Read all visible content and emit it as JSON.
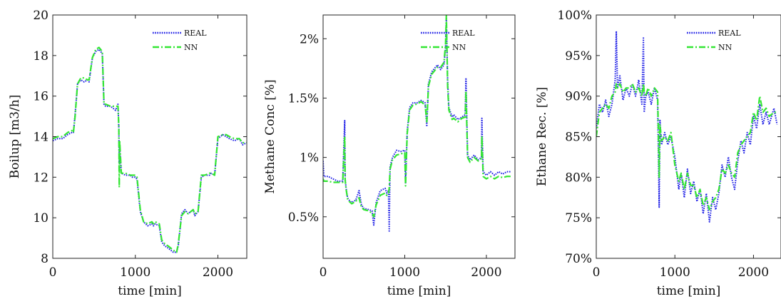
{
  "chart_data": [
    {
      "type": "line",
      "xlabel": "time [min]",
      "ylabel": "Boilup [m3/h]",
      "xlim": [
        0,
        2350
      ],
      "ylim": [
        8,
        20
      ],
      "xticks": [
        0,
        1000,
        2000
      ],
      "xtick_labels": [
        "0",
        "1000",
        "2000"
      ],
      "yticks": [
        8,
        10,
        12,
        14,
        16,
        18,
        20
      ],
      "ytick_labels": [
        "8",
        "10",
        "12",
        "14",
        "16",
        "18",
        "20"
      ],
      "legend_position": "top-right",
      "series": [
        {
          "name": "REAL",
          "color": "#1f1fe6",
          "style": "dotted",
          "x": [
            0,
            60,
            120,
            180,
            230,
            250,
            270,
            300,
            340,
            380,
            420,
            440,
            480,
            520,
            560,
            600,
            620,
            640,
            700,
            760,
            790,
            800,
            805,
            810,
            830,
            880,
            940,
            960,
            1000,
            1020,
            1060,
            1100,
            1150,
            1200,
            1220,
            1240,
            1290,
            1320,
            1360,
            1400,
            1460,
            1500,
            1520,
            1560,
            1600,
            1640,
            1700,
            1720,
            1760,
            1800,
            1840,
            1900,
            1920,
            1960,
            2000,
            2060,
            2100,
            2140,
            2200,
            2260,
            2300,
            2350
          ],
          "values": [
            13.8,
            13.9,
            13.9,
            14.1,
            14.2,
            14.2,
            15.1,
            16.6,
            16.8,
            16.7,
            16.8,
            16.7,
            17.9,
            18.2,
            18.3,
            18.1,
            15.6,
            15.5,
            15.5,
            15.3,
            15.6,
            14.4,
            12.7,
            13.5,
            12.2,
            12.1,
            12.1,
            12.0,
            12.0,
            11.9,
            10.3,
            9.8,
            9.6,
            9.7,
            9.6,
            9.7,
            9.6,
            8.8,
            8.6,
            8.5,
            8.3,
            8.3,
            8.6,
            10.2,
            10.4,
            10.2,
            10.4,
            10.1,
            10.3,
            12.0,
            12.1,
            12.1,
            12.2,
            12.1,
            13.9,
            14.1,
            14.0,
            13.9,
            13.8,
            13.9,
            13.6,
            13.7
          ]
        },
        {
          "name": "NN",
          "color": "#33e633",
          "style": "dashdot",
          "x": [
            0,
            60,
            120,
            180,
            230,
            250,
            270,
            300,
            340,
            380,
            420,
            440,
            480,
            520,
            560,
            600,
            620,
            640,
            700,
            760,
            790,
            800,
            805,
            810,
            830,
            880,
            940,
            960,
            1000,
            1020,
            1060,
            1100,
            1150,
            1200,
            1220,
            1240,
            1290,
            1320,
            1360,
            1400,
            1460,
            1500,
            1520,
            1560,
            1600,
            1640,
            1700,
            1720,
            1760,
            1800,
            1840,
            1900,
            1920,
            1960,
            2000,
            2060,
            2100,
            2140,
            2200,
            2260,
            2300,
            2350
          ],
          "values": [
            13.9,
            14.0,
            14.0,
            14.2,
            14.3,
            14.2,
            15.0,
            16.6,
            16.9,
            16.9,
            16.8,
            16.8,
            17.9,
            18.3,
            18.4,
            18.2,
            15.6,
            15.6,
            15.5,
            15.5,
            15.5,
            14.5,
            11.5,
            13.8,
            12.2,
            12.2,
            12.1,
            12.1,
            12.1,
            12.0,
            10.4,
            9.8,
            9.7,
            9.8,
            9.7,
            9.8,
            9.7,
            8.9,
            8.7,
            8.6,
            8.4,
            8.3,
            8.7,
            10.1,
            10.3,
            10.2,
            10.4,
            10.2,
            10.3,
            12.1,
            12.1,
            12.2,
            12.2,
            12.1,
            14.0,
            14.1,
            14.1,
            14.0,
            13.9,
            13.9,
            13.7,
            13.7
          ]
        }
      ]
    },
    {
      "type": "line",
      "xlabel": "time [min]",
      "ylabel": "Methane Conc [%]",
      "xlim": [
        0,
        2350
      ],
      "ylim": [
        0.15,
        2.2
      ],
      "xticks": [
        0,
        1000,
        2000
      ],
      "xtick_labels": [
        "0",
        "1000",
        "2000"
      ],
      "yticks": [
        0.5,
        1.0,
        1.5,
        2.0
      ],
      "ytick_labels": [
        "0.5%",
        "1%",
        "1.5%",
        "2%"
      ],
      "legend_position": "top-right",
      "series": [
        {
          "name": "REAL",
          "color": "#1f1fe6",
          "style": "dotted",
          "x": [
            0,
            10,
            60,
            120,
            180,
            240,
            265,
            270,
            280,
            300,
            320,
            350,
            400,
            440,
            470,
            500,
            560,
            600,
            620,
            650,
            700,
            760,
            780,
            800,
            810,
            820,
            850,
            900,
            950,
            1000,
            1010,
            1030,
            1060,
            1100,
            1150,
            1200,
            1250,
            1270,
            1290,
            1330,
            1400,
            1440,
            1480,
            1500,
            1510,
            1525,
            1540,
            1580,
            1600,
            1650,
            1700,
            1740,
            1750,
            1770,
            1800,
            1850,
            1900,
            1940,
            1945,
            1960,
            2000,
            2050,
            2100,
            2150,
            2200,
            2250,
            2300
          ],
          "values": [
            0.97,
            0.84,
            0.84,
            0.82,
            0.8,
            0.8,
            1.31,
            0.82,
            0.75,
            0.66,
            0.64,
            0.62,
            0.64,
            0.72,
            0.6,
            0.57,
            0.56,
            0.55,
            0.43,
            0.62,
            0.72,
            0.74,
            0.7,
            0.72,
            0.38,
            0.92,
            1.0,
            1.06,
            1.05,
            1.06,
            0.78,
            1.22,
            1.42,
            1.46,
            1.46,
            1.48,
            1.46,
            1.26,
            1.62,
            1.72,
            1.78,
            1.74,
            1.78,
            1.92,
            2.18,
            1.65,
            1.42,
            1.34,
            1.36,
            1.32,
            1.34,
            1.36,
            1.67,
            1.02,
            0.98,
            1.02,
            0.98,
            1.0,
            1.33,
            0.88,
            0.85,
            0.88,
            0.85,
            0.88,
            0.86,
            0.88,
            0.88
          ]
        },
        {
          "name": "NN",
          "color": "#33e633",
          "style": "dashdot",
          "x": [
            0,
            10,
            60,
            120,
            180,
            240,
            265,
            270,
            280,
            300,
            320,
            350,
            400,
            440,
            470,
            500,
            560,
            600,
            620,
            650,
            700,
            760,
            780,
            800,
            810,
            820,
            850,
            900,
            950,
            1000,
            1010,
            1030,
            1060,
            1100,
            1150,
            1200,
            1250,
            1270,
            1290,
            1330,
            1400,
            1440,
            1480,
            1500,
            1510,
            1525,
            1540,
            1580,
            1600,
            1650,
            1700,
            1740,
            1750,
            1770,
            1800,
            1850,
            1900,
            1940,
            1945,
            1960,
            2000,
            2050,
            2100,
            2150,
            2200,
            2250,
            2300
          ],
          "values": [
            0.82,
            0.8,
            0.8,
            0.79,
            0.79,
            0.79,
            1.18,
            0.81,
            0.74,
            0.65,
            0.63,
            0.61,
            0.63,
            0.66,
            0.58,
            0.56,
            0.55,
            0.53,
            0.5,
            0.6,
            0.68,
            0.7,
            0.68,
            0.7,
            0.74,
            0.9,
            0.98,
            1.02,
            1.03,
            1.04,
            0.76,
            1.2,
            1.4,
            1.44,
            1.45,
            1.47,
            1.44,
            1.3,
            1.6,
            1.7,
            1.76,
            1.76,
            1.8,
            1.95,
            2.2,
            1.6,
            1.4,
            1.32,
            1.33,
            1.3,
            1.33,
            1.34,
            1.56,
            1.0,
            0.96,
            1.0,
            0.97,
            0.99,
            1.18,
            0.84,
            0.82,
            0.84,
            0.82,
            0.84,
            0.83,
            0.84,
            0.84
          ]
        }
      ]
    },
    {
      "type": "line",
      "xlabel": "time [min]",
      "ylabel": "Ethane Rec. [%]",
      "xlim": [
        0,
        2350
      ],
      "ylim": [
        70,
        100
      ],
      "xticks": [
        0,
        1000,
        2000
      ],
      "xtick_labels": [
        "0",
        "1000",
        "2000"
      ],
      "yticks": [
        70,
        75,
        80,
        85,
        90,
        95,
        100
      ],
      "ytick_labels": [
        "70%",
        "75%",
        "80%",
        "85%",
        "90%",
        "95%",
        "100%"
      ],
      "legend_position": "top-right",
      "series": [
        {
          "name": "REAL",
          "color": "#1f1fe6",
          "style": "dotted",
          "x": [
            0,
            40,
            80,
            120,
            160,
            200,
            240,
            255,
            270,
            300,
            340,
            380,
            420,
            460,
            500,
            540,
            580,
            600,
            610,
            630,
            660,
            700,
            740,
            780,
            800,
            810,
            830,
            870,
            910,
            950,
            1000,
            1050,
            1080,
            1120,
            1160,
            1200,
            1240,
            1280,
            1320,
            1360,
            1400,
            1440,
            1480,
            1520,
            1560,
            1600,
            1640,
            1680,
            1720,
            1760,
            1800,
            1840,
            1880,
            1920,
            1960,
            2000,
            2040,
            2080,
            2120,
            2160,
            2200,
            2260,
            2300
          ],
          "values": [
            86.0,
            89.0,
            88.0,
            89.5,
            87.5,
            89.0,
            92.0,
            98.0,
            91.0,
            92.5,
            89.5,
            91.0,
            90.0,
            91.5,
            90.0,
            92.0,
            89.0,
            97.3,
            88.0,
            90.0,
            90.5,
            89.0,
            91.0,
            89.5,
            76.3,
            87.0,
            84.0,
            85.5,
            84.0,
            85.0,
            82.5,
            78.5,
            80.5,
            77.5,
            81.0,
            78.0,
            79.5,
            77.0,
            78.5,
            75.5,
            78.0,
            74.5,
            77.5,
            76.0,
            78.0,
            81.5,
            80.0,
            82.5,
            80.0,
            78.5,
            82.0,
            84.5,
            83.0,
            85.5,
            84.0,
            87.5,
            86.0,
            89.0,
            86.5,
            88.0,
            86.5,
            88.5,
            86.5
          ]
        },
        {
          "name": "NN",
          "color": "#33e633",
          "style": "dashdot",
          "x": [
            0,
            40,
            80,
            120,
            160,
            200,
            240,
            255,
            270,
            300,
            340,
            380,
            420,
            460,
            500,
            540,
            580,
            600,
            610,
            630,
            660,
            700,
            740,
            780,
            800,
            810,
            830,
            870,
            910,
            950,
            1000,
            1050,
            1080,
            1120,
            1160,
            1200,
            1240,
            1280,
            1320,
            1360,
            1400,
            1440,
            1480,
            1520,
            1560,
            1600,
            1640,
            1680,
            1720,
            1760,
            1800,
            1840,
            1880,
            1920,
            1960,
            2000,
            2040,
            2080,
            2120,
            2160,
            2200,
            2260,
            2300
          ],
          "values": [
            85.0,
            88.0,
            88.5,
            89.0,
            88.5,
            90.0,
            90.5,
            91.5,
            91.0,
            91.5,
            90.5,
            91.0,
            91.0,
            91.5,
            90.5,
            91.0,
            90.0,
            91.5,
            90.5,
            90.0,
            91.0,
            90.0,
            91.0,
            90.5,
            80.0,
            86.5,
            84.5,
            85.0,
            84.5,
            85.5,
            81.5,
            79.5,
            80.5,
            78.5,
            80.5,
            79.0,
            79.0,
            77.5,
            78.5,
            76.5,
            77.5,
            76.0,
            77.0,
            77.5,
            78.5,
            81.0,
            80.5,
            81.5,
            80.5,
            80.0,
            83.0,
            84.0,
            84.5,
            85.0,
            85.5,
            88.0,
            87.0,
            90.0,
            88.0,
            88.5,
            87.5,
            88.0,
            88.0
          ]
        }
      ]
    }
  ]
}
